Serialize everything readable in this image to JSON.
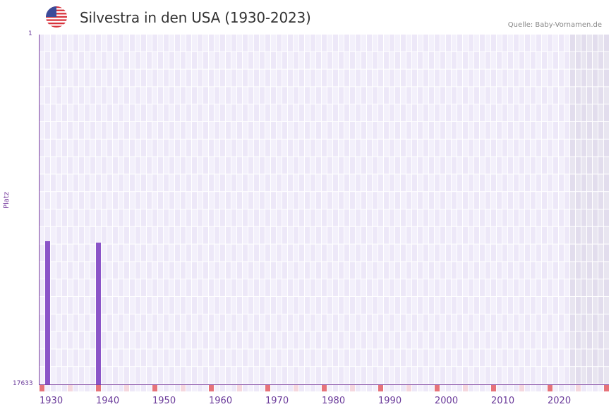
{
  "header": {
    "title": "Silvestra in den USA (1930-2023)",
    "source": "Quelle: Baby-Vornamen.de",
    "flag_icon": "usa-flag-icon"
  },
  "colors": {
    "bar": "#8b55c8",
    "axis": "#7a3fa0",
    "grid_cell_a": "#ede8f8",
    "grid_cell_b": "#f3f0fb",
    "future_cell_a": "#e2dded",
    "future_cell_b": "#e8e5f0",
    "decade_marker": "#e6737a",
    "half_decade_marker": "#f5d7de"
  },
  "chart_data": {
    "type": "bar",
    "title": "Silvestra in den USA (1930-2023)",
    "xlabel": "",
    "ylabel": "Platz",
    "y_axis_inverted": true,
    "ylim": [
      17633,
      1
    ],
    "y_ticks": [
      "1",
      "17633"
    ],
    "x_ticks": [
      "1930",
      "1940",
      "1950",
      "1960",
      "1970",
      "1980",
      "1990",
      "2000",
      "2010",
      "2020"
    ],
    "x_range": [
      1930,
      2030
    ],
    "grid": true,
    "legend": null,
    "shaded_future_from": 2024,
    "series": [
      {
        "name": "Platz",
        "points": [
          {
            "year": 1931,
            "rank": 10420
          },
          {
            "year": 1940,
            "rank": 10490
          }
        ]
      }
    ]
  }
}
